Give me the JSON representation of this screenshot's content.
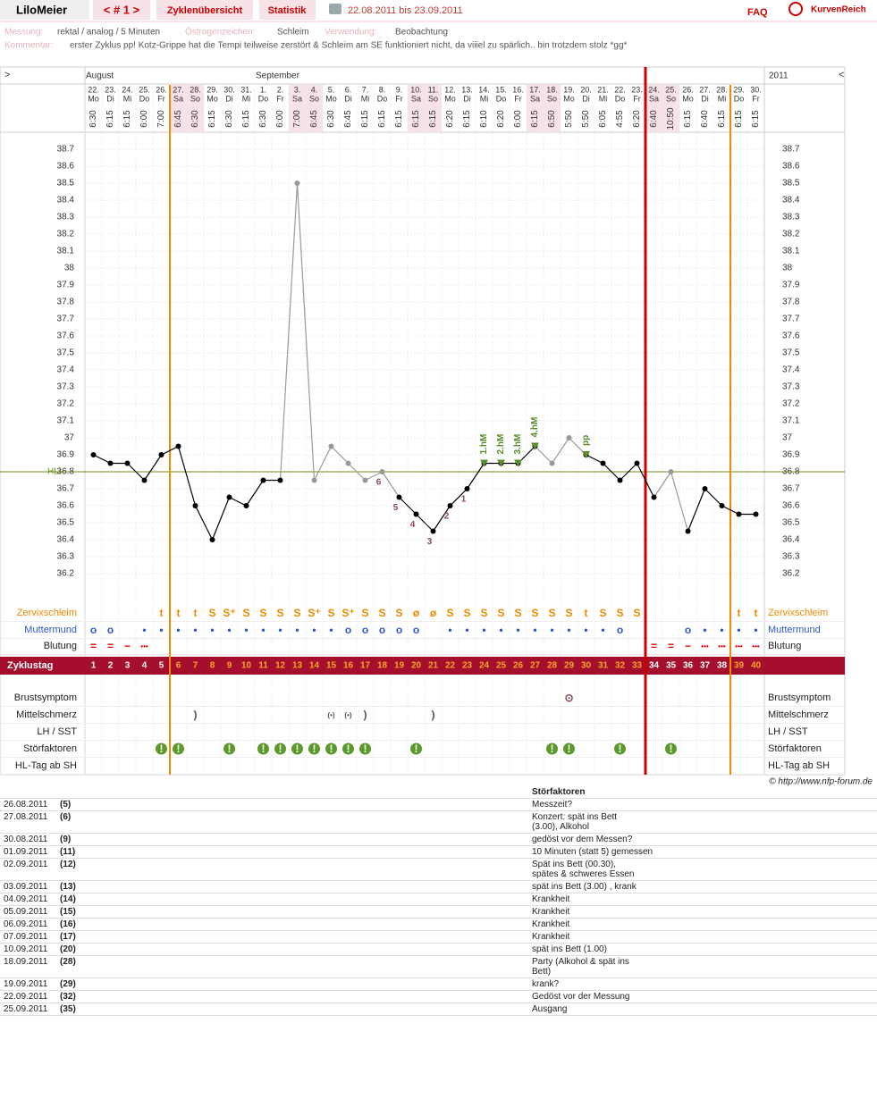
{
  "header": {
    "user": "LiloMeier",
    "cycle_nav": "< # 1 >",
    "tabs": [
      "Zyklenübersicht",
      "Statistik"
    ],
    "period": "22.08.2011 bis 23.09.2011",
    "faq": "FAQ",
    "logo": "KurvenReich"
  },
  "info": {
    "measurement_label": "Messung:",
    "measurement": "rektal / analog / 5 Minuten",
    "estrogen_label": "Östrogenzeichen:",
    "estrogen": "Schleim",
    "usage_label": "Verwendung:",
    "usage": "Beobachtung",
    "comment_label": "Kommentar:",
    "comment": "erster Zyklus pp! Kotz-Grippe hat die Tempi teilweise zerstört & Schleim am SE funktioniert nicht, da viiiel zu spärlich.. bin trotzdem stolz *gg*"
  },
  "chart_data": {
    "type": "line",
    "nav_left": ">",
    "nav_right": "<",
    "year": "2011",
    "months": [
      {
        "label": "August",
        "index": 0
      },
      {
        "label": "September",
        "index": 10
      }
    ],
    "categories": [
      "22.",
      "23.",
      "24.",
      "25.",
      "26.",
      "27.",
      "28.",
      "29.",
      "30.",
      "31.",
      "1.",
      "2.",
      "3.",
      "4.",
      "5.",
      "6.",
      "7.",
      "8.",
      "9.",
      "10.",
      "11.",
      "12.",
      "13.",
      "14.",
      "15.",
      "16.",
      "17.",
      "18.",
      "19.",
      "20.",
      "21.",
      "22.",
      "23.",
      "24.",
      "25.",
      "26.",
      "27.",
      "28.",
      "29.",
      "30."
    ],
    "weekdays": [
      "Mo",
      "Di",
      "Mi",
      "Do",
      "Fr",
      "Sa",
      "So",
      "Mo",
      "Di",
      "Mi",
      "Do",
      "Fr",
      "Sa",
      "So",
      "Mo",
      "Di",
      "Mi",
      "Do",
      "Fr",
      "Sa",
      "So",
      "Mo",
      "Di",
      "Mi",
      "Do",
      "Fr",
      "Sa",
      "So",
      "Mo",
      "Di",
      "Mi",
      "Do",
      "Fr",
      "Sa",
      "So",
      "Mo",
      "Di",
      "Mi",
      "Do",
      "Fr"
    ],
    "times": [
      "6:30",
      "6:15",
      "6:15",
      "6:00",
      "7:00",
      "6:45",
      "6:30",
      "6:15",
      "6:30",
      "6:15",
      "6:30",
      "6:00",
      "7:00",
      "6:45",
      "6:30",
      "6:45",
      "6:15",
      "6:15",
      "6:15",
      "6:15",
      "6:15",
      "6:20",
      "6:15",
      "6:10",
      "6:20",
      "6:00",
      "6:15",
      "6:50",
      "5:50",
      "5:50",
      "6:05",
      "4:55",
      "6:20",
      "6:40",
      "10:50",
      "6:15",
      "6:40",
      "6:15",
      "6:15",
      "6:15"
    ],
    "shaded_indices": [
      5,
      6,
      12,
      13,
      19,
      20,
      26,
      27,
      33,
      34
    ],
    "values": [
      36.9,
      36.85,
      36.85,
      36.75,
      36.9,
      36.95,
      36.6,
      36.4,
      36.65,
      36.6,
      36.75,
      36.75,
      38.5,
      36.75,
      36.95,
      36.85,
      36.75,
      36.8,
      36.65,
      36.55,
      36.45,
      36.6,
      36.7,
      36.85,
      36.85,
      36.85,
      36.95,
      36.85,
      37.0,
      36.9,
      36.85,
      36.75,
      36.85,
      36.65,
      36.8,
      36.45,
      36.7,
      36.6,
      36.55,
      36.55
    ],
    "color": "#000000",
    "excluded_color": "#999999",
    "excluded_indices": [
      12,
      13,
      14,
      15,
      16,
      17,
      27,
      28,
      34
    ],
    "ylim": [
      36.05,
      38.8
    ],
    "yticks": [
      36.2,
      36.3,
      36.4,
      36.5,
      36.6,
      36.7,
      36.8,
      36.9,
      37,
      37.1,
      37.2,
      37.3,
      37.4,
      37.5,
      37.6,
      37.7,
      37.8,
      37.9,
      38,
      38.1,
      38.2,
      38.3,
      38.4,
      38.5,
      38.6,
      38.7
    ],
    "grid": true,
    "hli": {
      "label": "HLi",
      "value": 36.8,
      "color": "#6b8e23"
    },
    "annotations": [
      {
        "text": "6",
        "index": 17,
        "kind": "low"
      },
      {
        "text": "5",
        "index": 18,
        "kind": "low"
      },
      {
        "text": "4",
        "index": 19,
        "kind": "low"
      },
      {
        "text": "3",
        "index": 20,
        "kind": "low"
      },
      {
        "text": "2",
        "index": 21,
        "kind": "low"
      },
      {
        "text": "1",
        "index": 22,
        "kind": "low"
      },
      {
        "text": "1.hM",
        "index": 23,
        "kind": "high"
      },
      {
        "text": "2.hM",
        "index": 24,
        "kind": "high"
      },
      {
        "text": "3.hM",
        "index": 25,
        "kind": "high"
      },
      {
        "text": "4.hM",
        "index": 26,
        "kind": "high"
      },
      {
        "text": "pp",
        "index": 29,
        "kind": "high"
      }
    ],
    "vertical_lines": [
      {
        "after": 5,
        "color": "#f08a00"
      },
      {
        "after": 33,
        "color": "#cc0000"
      },
      {
        "after": 38,
        "color": "#f08a00"
      }
    ],
    "rows_top": [
      {
        "label": "Zervixschleim",
        "color": "#f08a00",
        "values": [
          null,
          null,
          null,
          null,
          "t",
          "t",
          "t",
          "S",
          "S⁺",
          "S",
          "S",
          "S",
          "S",
          "S⁺",
          "S",
          "S⁺",
          "S",
          "S",
          "S",
          "ø",
          "ø",
          "S",
          "S",
          "S",
          "S",
          "S",
          "S",
          "S",
          "S",
          "t",
          "S",
          "S",
          "S",
          null,
          null,
          null,
          null,
          null,
          "t",
          "t"
        ]
      },
      {
        "label": "Muttermund",
        "color": "#3355cc",
        "values": [
          "o",
          "o",
          null,
          "•",
          "•",
          "•",
          "•",
          "•",
          "•",
          "•",
          "•",
          "•",
          "•",
          "•",
          "•",
          "o",
          "o",
          "o",
          "o",
          "o",
          null,
          "•",
          "•",
          "•",
          "•",
          "•",
          "•",
          "•",
          "•",
          "•",
          "•",
          "o",
          null,
          null,
          null,
          "o",
          "•",
          "•",
          "•",
          "•"
        ]
      },
      {
        "label": "Blutung",
        "color": "#dd0000",
        "values": [
          "=",
          "=",
          "−",
          "•••",
          null,
          null,
          null,
          null,
          null,
          null,
          null,
          null,
          null,
          null,
          null,
          null,
          null,
          null,
          null,
          null,
          null,
          null,
          null,
          null,
          null,
          null,
          null,
          null,
          null,
          null,
          null,
          null,
          null,
          "=",
          "=",
          "−",
          "•••",
          "•••",
          "•••",
          "•••"
        ]
      }
    ],
    "cycle_label": "Zyklustag",
    "cycle_days": [
      1,
      2,
      3,
      4,
      5,
      6,
      7,
      8,
      9,
      10,
      11,
      12,
      13,
      14,
      15,
      16,
      17,
      18,
      19,
      20,
      21,
      22,
      23,
      24,
      25,
      26,
      27,
      28,
      29,
      30,
      31,
      32,
      33,
      34,
      35,
      36,
      37,
      38,
      39,
      40
    ],
    "rows_bottom": [
      {
        "label": "Brustsymptom",
        "color": "#8b3a4a",
        "values": [
          null,
          null,
          null,
          null,
          null,
          null,
          null,
          null,
          null,
          null,
          null,
          null,
          null,
          null,
          null,
          null,
          null,
          null,
          null,
          null,
          null,
          null,
          null,
          null,
          null,
          null,
          null,
          null,
          "⊙",
          null,
          null,
          null,
          null,
          null,
          null,
          null,
          null,
          null,
          null,
          null
        ]
      },
      {
        "label": "Mittelschmerz",
        "color": "#555555",
        "values": [
          null,
          null,
          null,
          null,
          null,
          null,
          ")",
          null,
          null,
          null,
          null,
          null,
          null,
          null,
          "(•)",
          "(•)",
          ")",
          null,
          null,
          null,
          ")",
          null,
          null,
          null,
          null,
          null,
          null,
          null,
          null,
          null,
          null,
          null,
          null,
          null,
          null,
          null,
          null,
          null,
          null,
          null
        ]
      },
      {
        "label": "LH / SST",
        "color": "#555555"
      },
      {
        "label": "Störfaktoren",
        "color": "#5a9a2a",
        "values": [
          null,
          null,
          null,
          null,
          "!",
          "!",
          null,
          null,
          "!",
          null,
          "!",
          "!",
          "!",
          "!",
          "!",
          "!",
          "!",
          null,
          null,
          "!",
          null,
          null,
          null,
          null,
          null,
          null,
          null,
          "!",
          "!",
          null,
          null,
          "!",
          null,
          null,
          "!",
          null,
          null,
          null,
          null,
          null
        ]
      },
      {
        "label": "HL-Tag ab SH",
        "color": "#555555"
      }
    ]
  },
  "copyright": "© http://www.nfp-forum.de",
  "table": {
    "header": "Störfaktoren",
    "rows": [
      [
        "26.08.2011",
        "(5)",
        "Messzeit?"
      ],
      [
        "27.08.2011",
        "(6)",
        "Konzert: spät ins Bett\n(3.00), Alkohol"
      ],
      [
        "30.08.2011",
        "(9)",
        "gedöst vor dem Messen?"
      ],
      [
        "01.09.2011",
        "(11)",
        "10 Minuten (statt 5) gemessen"
      ],
      [
        "02.09.2011",
        "(12)",
        "Spät ins Bett (00.30),\nspätes & schweres Essen"
      ],
      [
        "03.09.2011",
        "(13)",
        "spät ins Bett (3.00) , krank"
      ],
      [
        "04.09.2011",
        "(14)",
        "Krankheit"
      ],
      [
        "05.09.2011",
        "(15)",
        "Krankheit"
      ],
      [
        "06.09.2011",
        "(16)",
        "Krankheit"
      ],
      [
        "07.09.2011",
        "(17)",
        "Krankheit"
      ],
      [
        "10.09.2011",
        "(20)",
        "spät ins Bett (1.00)"
      ],
      [
        "18.09.2011",
        "(28)",
        "Party (Alkohol & spät ins\nBett)"
      ],
      [
        "19.09.2011",
        "(29)",
        "krank?"
      ],
      [
        "22.09.2011",
        "(32)",
        "Gedöst vor der Messung"
      ],
      [
        "25.09.2011",
        "(35)",
        "Ausgang"
      ]
    ]
  }
}
